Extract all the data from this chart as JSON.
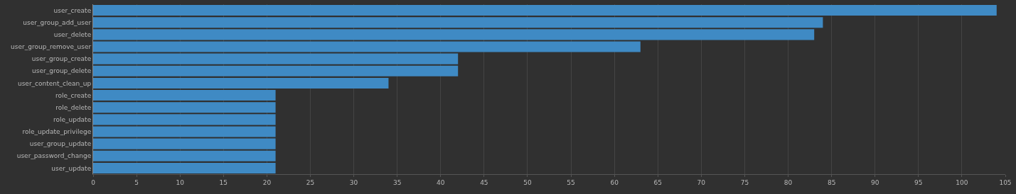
{
  "chart_data": {
    "type": "bar",
    "orientation": "horizontal",
    "categories": [
      "user_create",
      "user_group_add_user",
      "user_delete",
      "user_group_remove_user",
      "user_group_create",
      "user_group_delete",
      "user_content_clean_up",
      "role_create",
      "role_delete",
      "role_update",
      "role_update_privilege",
      "user_group_update",
      "user_password_change",
      "user_update"
    ],
    "values": [
      104,
      84,
      83,
      63,
      42,
      42,
      34,
      21,
      21,
      21,
      21,
      21,
      21,
      21
    ],
    "color": "#3f8ac4",
    "xlim": [
      0,
      105
    ],
    "xticks": [
      0,
      5,
      10,
      15,
      20,
      25,
      30,
      35,
      40,
      45,
      50,
      55,
      60,
      65,
      70,
      75,
      80,
      85,
      90,
      95,
      100,
      105
    ],
    "grid": "x",
    "legend": false
  }
}
